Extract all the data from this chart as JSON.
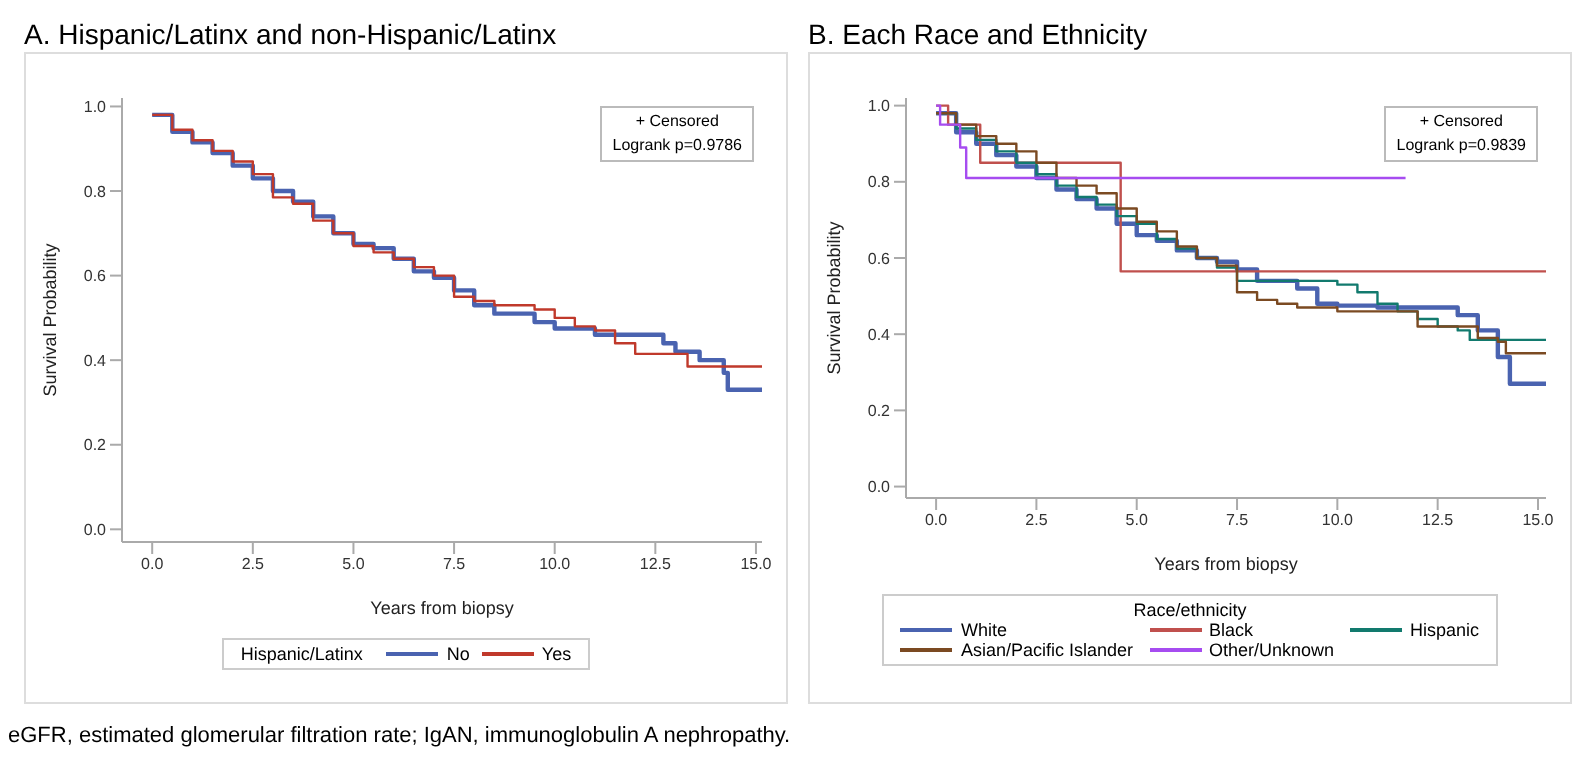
{
  "chart_data": [
    {
      "type": "step",
      "title": "A. Hispanic/Latinx and non-Hispanic/Latinx",
      "xlabel": "Years from biopsy",
      "ylabel": "Survival Probability",
      "legend_title": "Hispanic/Latinx",
      "legend": "bottom",
      "marker": "none",
      "line_style": "solid",
      "xlim": [
        -0.75,
        15.15
      ],
      "ylim": [
        -0.03,
        1.02
      ],
      "xticks": [
        {
          "value": 0,
          "label": "0.0"
        },
        {
          "value": 2.5,
          "label": "2.5"
        },
        {
          "value": 5,
          "label": "5.0"
        },
        {
          "value": 7.5,
          "label": "7.5"
        },
        {
          "value": 10,
          "label": "10.0"
        },
        {
          "value": 12.5,
          "label": "12.5"
        },
        {
          "value": 15,
          "label": "15.0"
        }
      ],
      "yticks": [
        {
          "value": 0,
          "label": "0.0"
        },
        {
          "value": 0.2,
          "label": "0.2"
        },
        {
          "value": 0.4,
          "label": "0.4"
        },
        {
          "value": 0.6,
          "label": "0.6"
        },
        {
          "value": 0.8,
          "label": "0.8"
        },
        {
          "value": 1,
          "label": "1.0"
        }
      ],
      "annotations": [
        "+ Censored",
        "Logrank p=0.9786",
        "eGFR, estimated glomerular filtration rate; IgAN, immunoglobulin A nephropathy."
      ],
      "series": [
        {
          "name": "No",
          "color": "#4a63b0",
          "x": [
            0,
            0.5,
            1,
            1.5,
            2,
            2.5,
            3,
            3.5,
            4,
            4.5,
            5,
            5.5,
            6,
            6.5,
            7,
            7.5,
            8,
            8.5,
            9,
            9.5,
            10,
            11,
            12.7,
            13,
            13.6,
            14.2,
            14.3,
            15.15
          ],
          "values": [
            0.98,
            0.94,
            0.915,
            0.89,
            0.86,
            0.83,
            0.8,
            0.775,
            0.74,
            0.7,
            0.675,
            0.665,
            0.64,
            0.61,
            0.595,
            0.565,
            0.53,
            0.51,
            0.51,
            0.49,
            0.475,
            0.46,
            0.44,
            0.42,
            0.4,
            0.37,
            0.33,
            0.33
          ]
        },
        {
          "name": "Yes",
          "color": "#c0392b",
          "x": [
            0,
            0.5,
            1,
            1.5,
            2,
            2.5,
            3,
            3.5,
            4,
            4.5,
            5,
            5.5,
            6,
            6.5,
            7,
            7.5,
            8,
            8.5,
            9.5,
            10,
            10.5,
            11,
            11.5,
            12,
            13.3,
            15.15
          ],
          "values": [
            0.98,
            0.945,
            0.92,
            0.895,
            0.87,
            0.84,
            0.785,
            0.77,
            0.73,
            0.7,
            0.67,
            0.655,
            0.64,
            0.62,
            0.6,
            0.55,
            0.54,
            0.53,
            0.52,
            0.5,
            0.48,
            0.47,
            0.44,
            0.415,
            0.385,
            0.385
          ]
        }
      ]
    },
    {
      "type": "step",
      "title": "B. Each Race and Ethnicity",
      "xlabel": "Years from biopsy",
      "ylabel": "Survival Probability",
      "legend_title": "Race/ethnicity",
      "legend": "bottom",
      "marker": "none",
      "line_style": "solid",
      "xlim": [
        -0.75,
        15.2
      ],
      "ylim": [
        -0.03,
        1.02
      ],
      "xticks": [
        {
          "value": 0,
          "label": "0.0"
        },
        {
          "value": 2.5,
          "label": "2.5"
        },
        {
          "value": 5,
          "label": "5.0"
        },
        {
          "value": 7.5,
          "label": "7.5"
        },
        {
          "value": 10,
          "label": "10.0"
        },
        {
          "value": 12.5,
          "label": "12.5"
        },
        {
          "value": 15,
          "label": "15.0"
        }
      ],
      "yticks": [
        {
          "value": 0,
          "label": "0.0"
        },
        {
          "value": 0.2,
          "label": "0.2"
        },
        {
          "value": 0.4,
          "label": "0.4"
        },
        {
          "value": 0.6,
          "label": "0.6"
        },
        {
          "value": 0.8,
          "label": "0.8"
        },
        {
          "value": 1,
          "label": "1.0"
        }
      ],
      "annotations": [
        "+ Censored",
        "Logrank p=0.9839"
      ],
      "series": [
        {
          "name": "White",
          "color": "#4a63b0",
          "x": [
            0,
            0.5,
            1,
            1.5,
            2,
            2.5,
            3,
            3.5,
            4,
            4.5,
            5,
            5.5,
            6,
            6.5,
            7,
            7.5,
            8,
            9,
            9.5,
            10,
            11,
            13,
            13.5,
            14,
            14.3,
            15.2
          ],
          "values": [
            0.98,
            0.93,
            0.9,
            0.87,
            0.84,
            0.81,
            0.78,
            0.755,
            0.73,
            0.69,
            0.66,
            0.645,
            0.62,
            0.6,
            0.59,
            0.57,
            0.54,
            0.52,
            0.48,
            0.475,
            0.47,
            0.45,
            0.41,
            0.34,
            0.27,
            0.27
          ]
        },
        {
          "name": "Black",
          "color": "#c0504d",
          "x": [
            0,
            0.3,
            1.1,
            4.6,
            15.2
          ],
          "values": [
            1.0,
            0.95,
            0.85,
            0.565,
            0.565
          ]
        },
        {
          "name": "Hispanic",
          "color": "#127a6e",
          "x": [
            0,
            0.5,
            1,
            1.5,
            2,
            2.5,
            3,
            3.5,
            4,
            4.5,
            5,
            5.5,
            6,
            6.5,
            7,
            7.5,
            10,
            10.5,
            11,
            11.5,
            12,
            12.5,
            13,
            13.3,
            15.2
          ],
          "values": [
            0.98,
            0.94,
            0.91,
            0.88,
            0.85,
            0.82,
            0.79,
            0.76,
            0.74,
            0.71,
            0.69,
            0.65,
            0.625,
            0.6,
            0.575,
            0.54,
            0.53,
            0.51,
            0.48,
            0.46,
            0.44,
            0.42,
            0.41,
            0.385,
            0.385
          ]
        },
        {
          "name": "Asian/Pacific Islander",
          "color": "#7b4a22",
          "x": [
            0,
            0.5,
            1,
            1.5,
            2,
            2.5,
            3,
            3.5,
            4,
            4.5,
            5,
            5.5,
            6,
            6.5,
            7,
            7.5,
            8,
            8.5,
            9,
            10,
            12,
            13.5,
            14,
            14.2,
            15.2
          ],
          "values": [
            0.98,
            0.95,
            0.92,
            0.9,
            0.88,
            0.85,
            0.81,
            0.79,
            0.77,
            0.73,
            0.695,
            0.67,
            0.63,
            0.6,
            0.58,
            0.51,
            0.49,
            0.48,
            0.47,
            0.46,
            0.42,
            0.39,
            0.38,
            0.35,
            0.35
          ]
        },
        {
          "name": "Other/Unknown",
          "color": "#a64cf0",
          "x": [
            0,
            0.1,
            0.6,
            0.75,
            11.7
          ],
          "values": [
            1.0,
            0.95,
            0.89,
            0.81,
            0.81
          ]
        }
      ]
    }
  ]
}
